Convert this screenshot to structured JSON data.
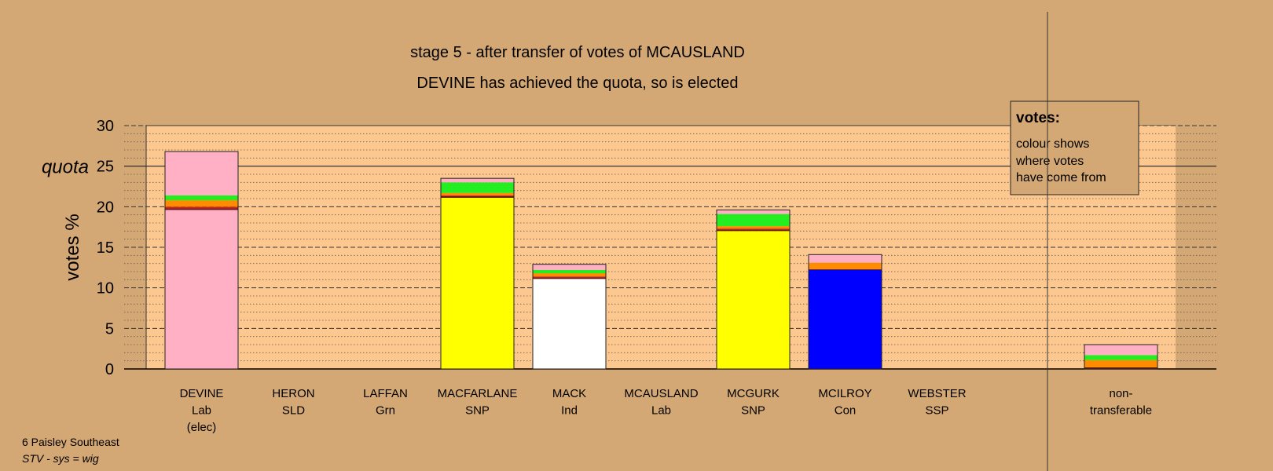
{
  "header": {
    "stage_line": "stage 5 - after transfer of votes of MCAUSLAND",
    "status_line": "DEVINE has achieved the quota, so is elected"
  },
  "axis": {
    "ylabel": "votes %",
    "quota_label": "quota",
    "ticks": [
      "0",
      "5",
      "10",
      "15",
      "20",
      "25",
      "30"
    ]
  },
  "legend": {
    "title": "votes:",
    "lines": [
      "colour shows",
      "where votes",
      "have come from"
    ]
  },
  "footer": {
    "ward": "6 Paisley Southeast",
    "system": "STV - sys = wig"
  },
  "colors": {
    "background": "#d4a874",
    "plot_area": "#fdc890",
    "Lab": "#ffb0c4",
    "SNP": "#ffff00",
    "Ind": "#ffffff",
    "Con": "#0000ff",
    "Grn": "#22ee22",
    "SLD": "#ff8c00",
    "SSP": "#cc2222",
    "other": "#6b1a1a"
  },
  "chart_data": {
    "type": "bar",
    "stacked": true,
    "ylim": [
      0,
      30
    ],
    "quota": 25,
    "grid": "dashed major every 5, dotted minor every 1",
    "categories": [
      {
        "name": "DEVINE",
        "party": "Lab",
        "note": "(elec)"
      },
      {
        "name": "HERON",
        "party": "SLD",
        "note": ""
      },
      {
        "name": "LAFFAN",
        "party": "Grn",
        "note": ""
      },
      {
        "name": "MACFARLANE",
        "party": "SNP",
        "note": ""
      },
      {
        "name": "MACK",
        "party": "Ind",
        "note": ""
      },
      {
        "name": "MCAUSLAND",
        "party": "Lab",
        "note": ""
      },
      {
        "name": "MCGURK",
        "party": "SNP",
        "note": ""
      },
      {
        "name": "MCILROY",
        "party": "Con",
        "note": ""
      },
      {
        "name": "WEBSTER",
        "party": "SSP",
        "note": ""
      }
    ],
    "nontransferable_label": [
      "non-",
      "transferable"
    ],
    "bars": [
      {
        "segments": [
          [
            "Lab",
            19.6
          ],
          [
            "other",
            0.2
          ],
          [
            "SSP",
            0.2
          ],
          [
            "SLD",
            0.8
          ],
          [
            "Grn",
            0.6
          ],
          [
            "Lab",
            5.4
          ]
        ]
      },
      {
        "segments": []
      },
      {
        "segments": []
      },
      {
        "segments": [
          [
            "SNP",
            21.1
          ],
          [
            "other",
            0.2
          ],
          [
            "SSP",
            0.1
          ],
          [
            "SLD",
            0.3
          ],
          [
            "Grn",
            1.3
          ],
          [
            "Lab",
            0.5
          ]
        ]
      },
      {
        "segments": [
          [
            "Ind",
            11.1
          ],
          [
            "other",
            0.2
          ],
          [
            "SSP",
            0.1
          ],
          [
            "SLD",
            0.4
          ],
          [
            "Grn",
            0.4
          ],
          [
            "Lab",
            0.7
          ]
        ]
      },
      {
        "segments": []
      },
      {
        "segments": [
          [
            "SNP",
            17.0
          ],
          [
            "other",
            0.2
          ],
          [
            "SSP",
            0.1
          ],
          [
            "SLD",
            0.3
          ],
          [
            "Grn",
            1.5
          ],
          [
            "Lab",
            0.5
          ]
        ]
      },
      {
        "segments": [
          [
            "Con",
            12.2
          ],
          [
            "other",
            0.1
          ],
          [
            "SLD",
            0.8
          ],
          [
            "Lab",
            1.0
          ]
        ]
      },
      {
        "segments": []
      }
    ],
    "nontransferable": {
      "segments": [
        [
          "other",
          0.2
        ],
        [
          "SLD",
          0.9
        ],
        [
          "Grn",
          0.6
        ],
        [
          "Lab",
          1.3
        ]
      ]
    }
  }
}
